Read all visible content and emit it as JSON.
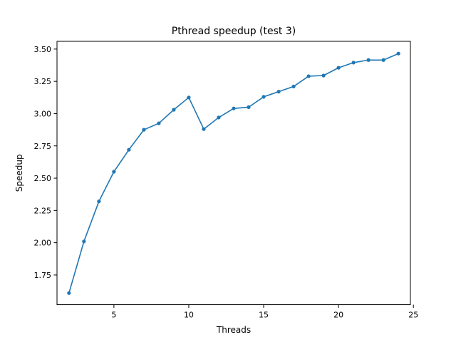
{
  "chart_data": {
    "type": "line",
    "title": "Pthread speedup (test 3)",
    "xlabel": "Threads",
    "ylabel": "Speedup",
    "xlim": [
      1.2,
      24.8
    ],
    "ylim": [
      1.52,
      3.56
    ],
    "xticks": [
      5,
      10,
      15,
      20,
      25
    ],
    "yticks": [
      1.75,
      2.0,
      2.25,
      2.5,
      2.75,
      3.0,
      3.25,
      3.5
    ],
    "grid": false,
    "legend": "none",
    "series": [
      {
        "color": "#1f77b4",
        "marker": "circle",
        "x": [
          2,
          3,
          4,
          5,
          6,
          7,
          8,
          9,
          10,
          11,
          12,
          13,
          14,
          15,
          16,
          17,
          18,
          19,
          20,
          21,
          22,
          23,
          24
        ],
        "y": [
          1.61,
          2.01,
          2.32,
          2.55,
          2.72,
          2.875,
          2.925,
          3.03,
          3.125,
          2.88,
          2.97,
          3.04,
          3.05,
          3.13,
          3.17,
          3.21,
          3.29,
          3.295,
          3.355,
          3.395,
          3.415,
          3.415,
          3.465
        ]
      }
    ]
  }
}
